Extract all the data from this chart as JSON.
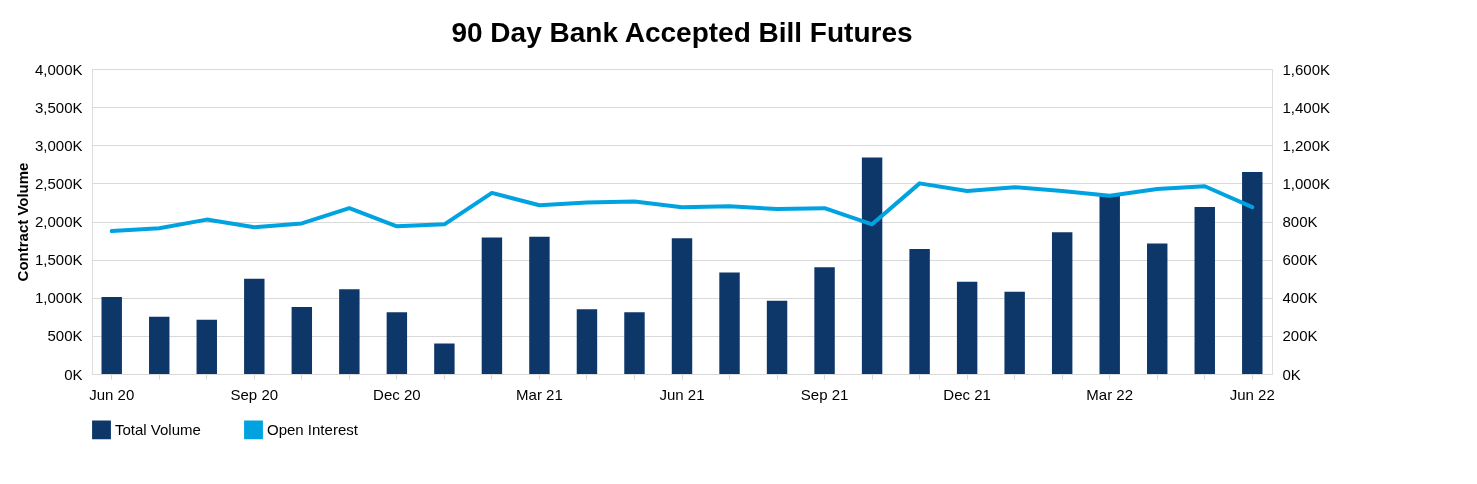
{
  "chart_data": {
    "type": "bar",
    "title": "90 Day Bank Accepted Bill Futures",
    "ylabel": "Contract Volume",
    "categories": [
      "Jun 20",
      null,
      null,
      "Sep 20",
      null,
      null,
      "Dec 20",
      null,
      null,
      "Mar 21",
      null,
      null,
      "Jun 21",
      null,
      null,
      "Sep 21",
      null,
      null,
      "Dec 21",
      null,
      null,
      "Mar 22",
      null,
      null,
      "Jun 22"
    ],
    "series": [
      {
        "name": "Total Volume",
        "color": "#0e3769",
        "values": [
          1010,
          750,
          710,
          1250,
          880,
          1110,
          810,
          400,
          1790,
          1800,
          850,
          810,
          1780,
          1330,
          960,
          1400,
          2840,
          1640,
          1210,
          1080,
          1860,
          2350,
          1710,
          2190,
          2650
        ]
      },
      {
        "name": "Open Interest",
        "type": "line",
        "axis": "y2",
        "color": "#00a3e0",
        "values": [
          750,
          765,
          810,
          770,
          790,
          870,
          775,
          785,
          950,
          885,
          900,
          905,
          875,
          880,
          865,
          870,
          785,
          1000,
          960,
          980,
          960,
          935,
          970,
          985,
          875
        ]
      }
    ],
    "ylim": [
      0,
      4000
    ],
    "yticks": [
      {
        "value": 0,
        "label": "0K"
      },
      {
        "value": 500,
        "label": "500K"
      },
      {
        "value": 1000,
        "label": "1,000K"
      },
      {
        "value": 1500,
        "label": "1,500K"
      },
      {
        "value": 2000,
        "label": "2,000K"
      },
      {
        "value": 2500,
        "label": "2,500K"
      },
      {
        "value": 3000,
        "label": "3,000K"
      },
      {
        "value": 3500,
        "label": "3,500K"
      },
      {
        "value": 4000,
        "label": "4,000K"
      }
    ],
    "y2lim": [
      0,
      1600
    ],
    "y2ticks": [
      {
        "value": 0,
        "label": "0K"
      },
      {
        "value": 200,
        "label": "200K"
      },
      {
        "value": 400,
        "label": "400K"
      },
      {
        "value": 600,
        "label": "600K"
      },
      {
        "value": 800,
        "label": "800K"
      },
      {
        "value": 1000,
        "label": "1,000K"
      },
      {
        "value": 1200,
        "label": "1,200K"
      },
      {
        "value": 1400,
        "label": "1,400K"
      },
      {
        "value": 1600,
        "label": "1,600K"
      }
    ],
    "grid": "y",
    "legend": "bottom",
    "line_style": "solid",
    "marker": "none"
  }
}
